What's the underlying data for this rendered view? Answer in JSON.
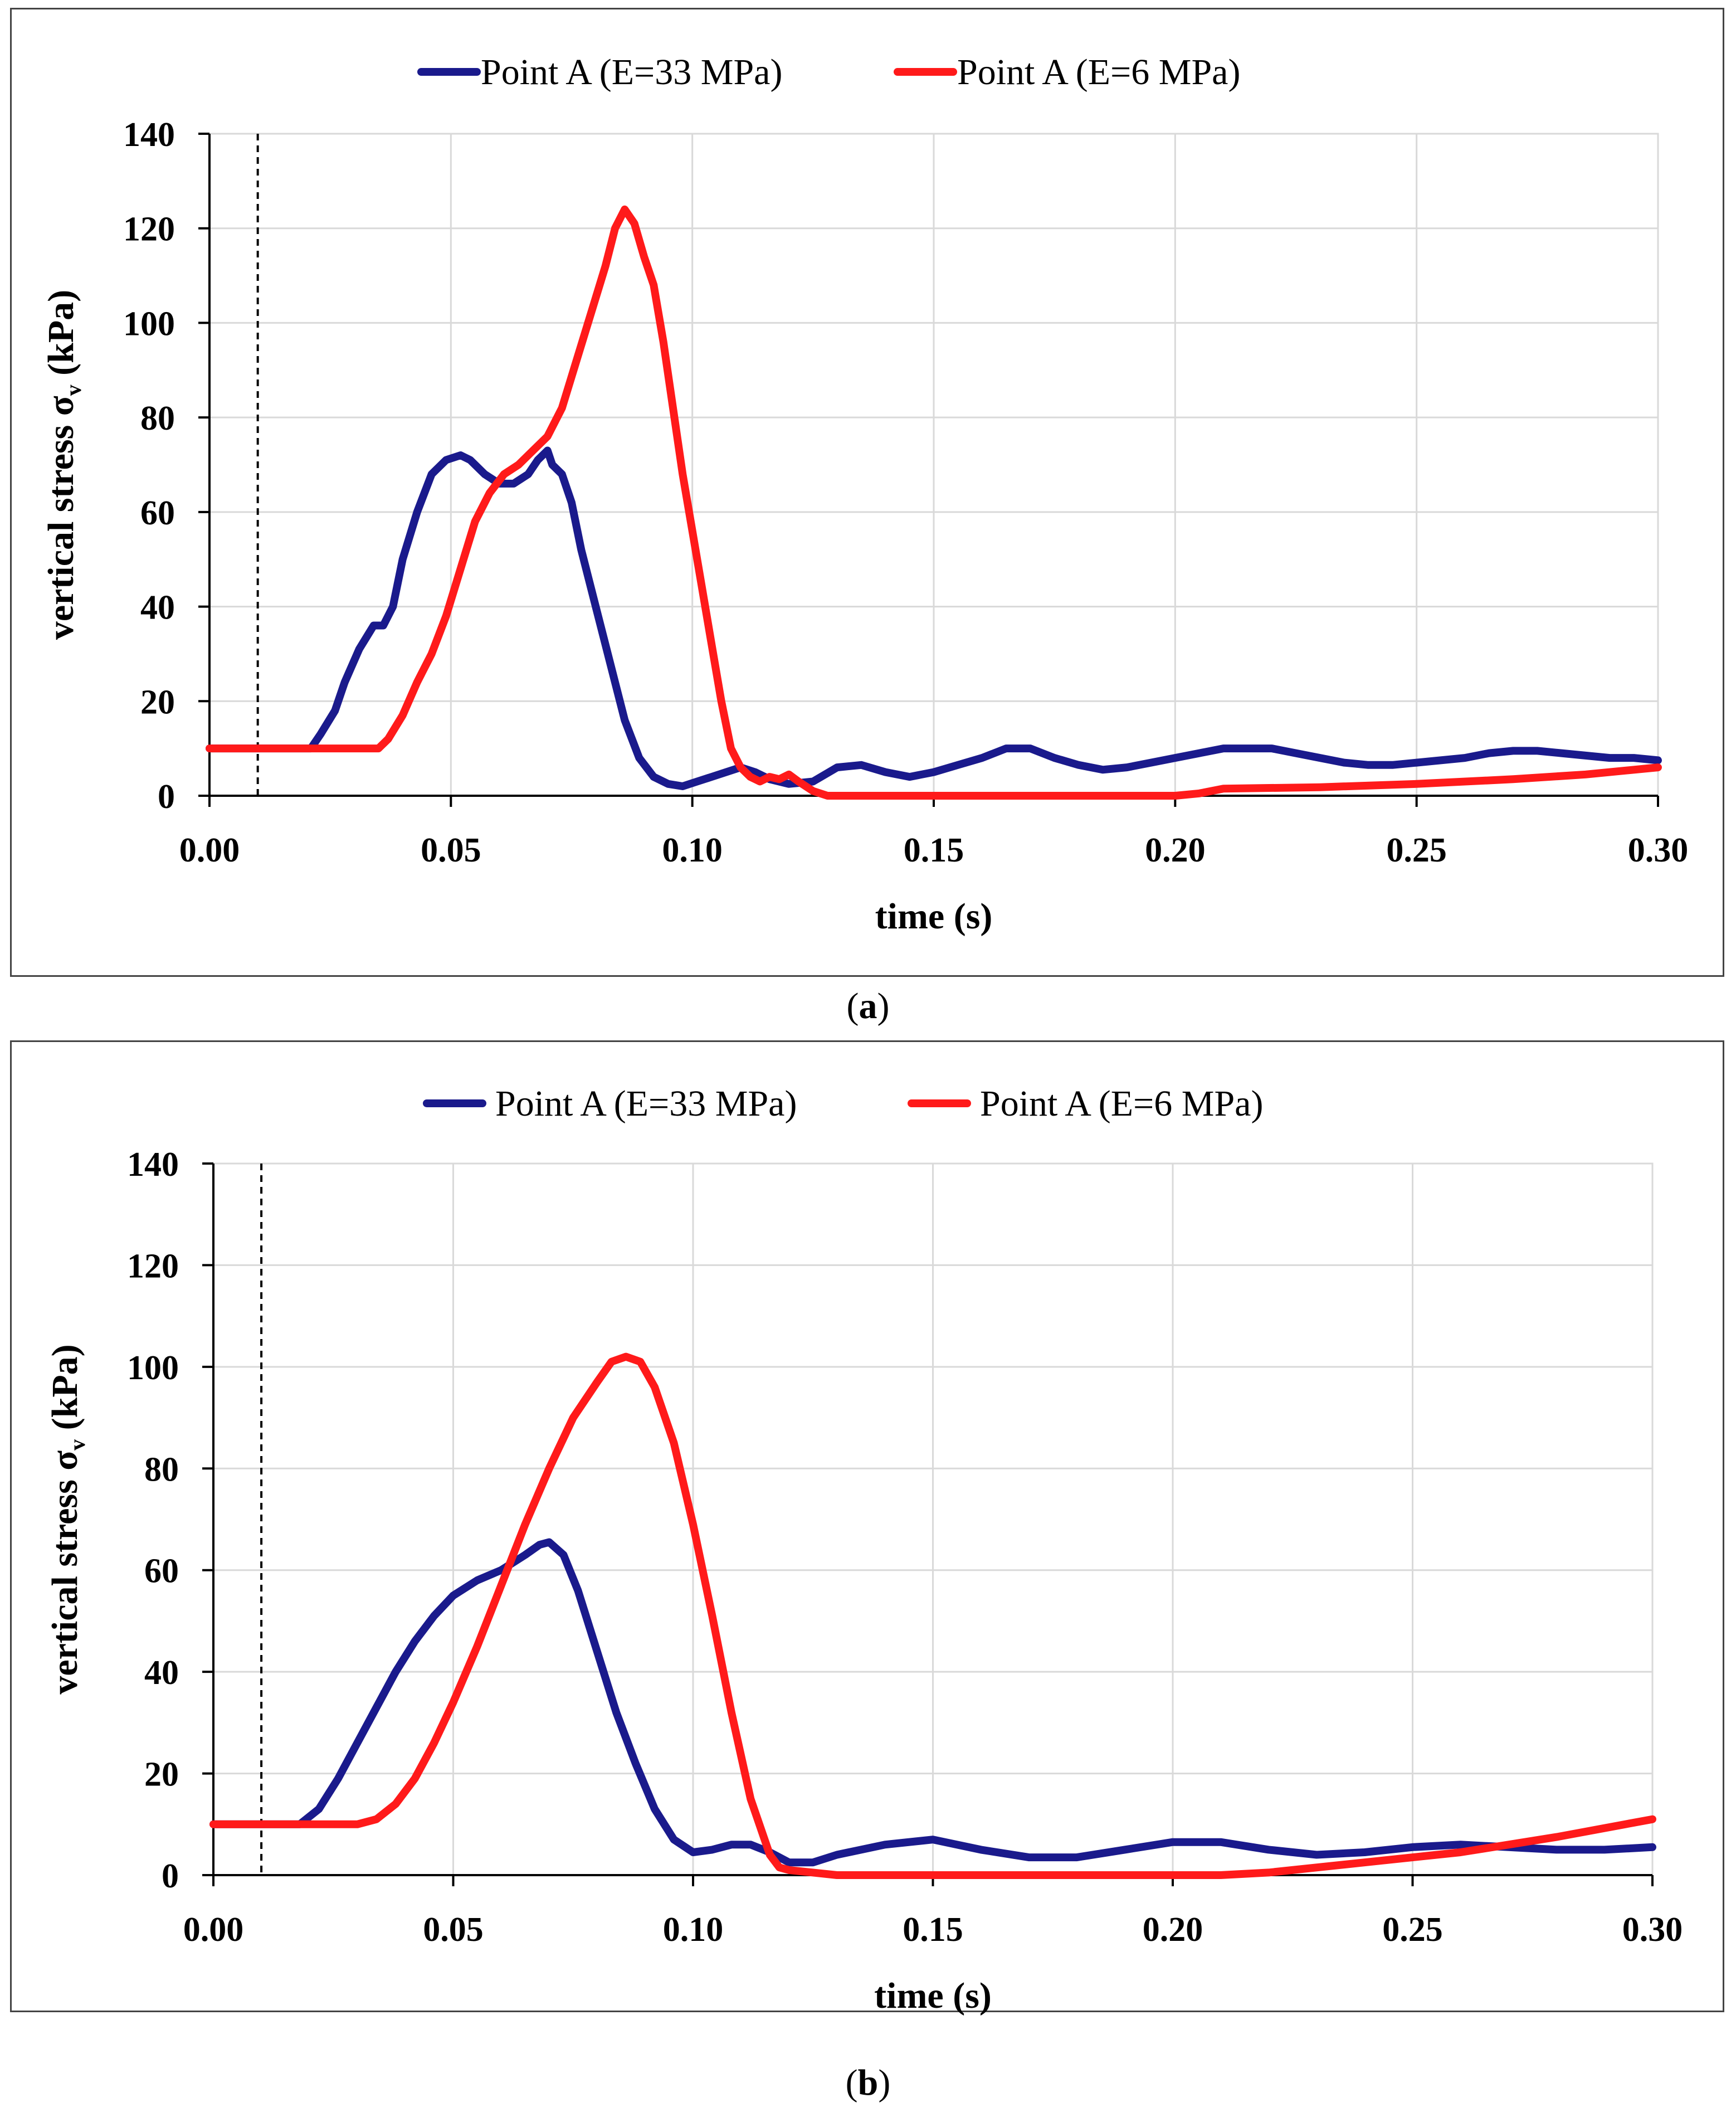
{
  "chart_data": [
    {
      "panel": "a",
      "type": "line",
      "caption_letter": "a",
      "xlabel": "time (s)",
      "ylabel": "vertical stress σ",
      "ylabel_subscript": "v",
      "ylabel_unit": "(kPa)",
      "xlim": [
        0,
        0.3
      ],
      "ylim": [
        0,
        140
      ],
      "xticks": [
        "0.00",
        "0.05",
        "0.10",
        "0.15",
        "0.20",
        "0.25",
        "0.30"
      ],
      "yticks": [
        "0",
        "20",
        "40",
        "60",
        "80",
        "100",
        "120",
        "140"
      ],
      "grid": true,
      "legend_position": "top-center",
      "marker_line_x": 0.01,
      "series": [
        {
          "name": "Point A (E=33 MPa)",
          "color": "#1a1a8c",
          "x": [
            0,
            0.021,
            0.023,
            0.026,
            0.028,
            0.031,
            0.034,
            0.036,
            0.038,
            0.04,
            0.043,
            0.046,
            0.049,
            0.052,
            0.054,
            0.057,
            0.06,
            0.063,
            0.066,
            0.068,
            0.07,
            0.071,
            0.073,
            0.075,
            0.077,
            0.08,
            0.083,
            0.086,
            0.089,
            0.092,
            0.095,
            0.098,
            0.101,
            0.104,
            0.107,
            0.11,
            0.113,
            0.116,
            0.12,
            0.125,
            0.13,
            0.135,
            0.14,
            0.145,
            0.15,
            0.155,
            0.16,
            0.165,
            0.17,
            0.175,
            0.18,
            0.185,
            0.19,
            0.195,
            0.2,
            0.205,
            0.21,
            0.215,
            0.22,
            0.225,
            0.23,
            0.235,
            0.24,
            0.245,
            0.25,
            0.255,
            0.26,
            0.265,
            0.27,
            0.275,
            0.28,
            0.285,
            0.29,
            0.295,
            0.3
          ],
          "y": [
            10,
            10,
            13,
            18,
            24,
            31,
            36,
            36,
            40,
            50,
            60,
            68,
            71,
            72,
            71,
            68,
            66,
            66,
            68,
            71,
            73,
            70,
            68,
            62,
            52,
            40,
            28,
            16,
            8,
            4,
            2.5,
            2,
            3,
            4,
            5,
            6,
            5,
            3.5,
            2.5,
            3,
            6,
            6.5,
            5,
            4,
            5,
            6.5,
            8,
            10,
            10,
            8,
            6.5,
            5.5,
            6,
            7,
            8,
            9,
            10,
            10,
            10,
            9,
            8,
            7,
            6.5,
            6.5,
            7,
            7.5,
            8,
            9,
            9.5,
            9.5,
            9,
            8.5,
            8,
            8,
            7.5
          ]
        },
        {
          "name": "Point A (E=6 MPa)",
          "color": "#ff1a1a",
          "x": [
            0,
            0.035,
            0.037,
            0.04,
            0.043,
            0.046,
            0.049,
            0.052,
            0.055,
            0.058,
            0.061,
            0.064,
            0.067,
            0.07,
            0.073,
            0.076,
            0.079,
            0.082,
            0.084,
            0.086,
            0.088,
            0.09,
            0.092,
            0.094,
            0.096,
            0.098,
            0.1,
            0.102,
            0.104,
            0.106,
            0.108,
            0.11,
            0.112,
            0.114,
            0.116,
            0.118,
            0.12,
            0.122,
            0.125,
            0.128,
            0.135,
            0.15,
            0.17,
            0.19,
            0.2,
            0.205,
            0.21,
            0.23,
            0.25,
            0.27,
            0.285,
            0.3
          ],
          "y": [
            10,
            10,
            12,
            17,
            24,
            30,
            38,
            48,
            58,
            64,
            68,
            70,
            73,
            76,
            82,
            92,
            102,
            112,
            120,
            124,
            121,
            114,
            108,
            96,
            82,
            68,
            56,
            44,
            32,
            20,
            10,
            6,
            4,
            3,
            4,
            3.5,
            4.5,
            3,
            1,
            0,
            0,
            0,
            0,
            0,
            0,
            0.5,
            1.5,
            1.8,
            2.5,
            3.5,
            4.5,
            6
          ]
        }
      ]
    },
    {
      "panel": "b",
      "type": "line",
      "caption_letter": "b",
      "xlabel": "time (s)",
      "ylabel": "vertical stress σ",
      "ylabel_subscript": "v",
      "ylabel_unit": "(kPa)",
      "xlim": [
        0,
        0.3
      ],
      "ylim": [
        0,
        140
      ],
      "xticks": [
        "0.00",
        "0.05",
        "0.10",
        "0.15",
        "0.20",
        "0.25",
        "0.30"
      ],
      "yticks": [
        "0",
        "20",
        "40",
        "60",
        "80",
        "100",
        "120",
        "140"
      ],
      "grid": true,
      "legend_position": "top-center",
      "marker_line_x": 0.01,
      "series": [
        {
          "name": "Point A (E=33 MPa)",
          "color": "#1a1a8c",
          "x": [
            0,
            0.018,
            0.022,
            0.026,
            0.03,
            0.034,
            0.038,
            0.042,
            0.046,
            0.05,
            0.055,
            0.06,
            0.065,
            0.068,
            0.07,
            0.073,
            0.076,
            0.08,
            0.084,
            0.088,
            0.092,
            0.096,
            0.1,
            0.104,
            0.108,
            0.112,
            0.116,
            0.12,
            0.125,
            0.13,
            0.14,
            0.15,
            0.16,
            0.17,
            0.18,
            0.19,
            0.2,
            0.21,
            0.22,
            0.23,
            0.24,
            0.25,
            0.26,
            0.27,
            0.28,
            0.29,
            0.3
          ],
          "y": [
            10,
            10,
            13,
            19,
            26,
            33,
            40,
            46,
            51,
            55,
            58,
            60,
            63,
            65,
            65.5,
            63,
            56,
            44,
            32,
            22,
            13,
            7,
            4.5,
            5,
            6,
            6,
            4.5,
            2.5,
            2.5,
            4,
            6,
            7,
            5,
            3.5,
            3.5,
            5,
            6.5,
            6.5,
            5,
            4,
            4.5,
            5.5,
            6,
            5.5,
            5,
            5,
            5.5
          ]
        },
        {
          "name": "Point A (E=6 MPa)",
          "color": "#ff1a1a",
          "x": [
            0,
            0.03,
            0.034,
            0.038,
            0.042,
            0.046,
            0.05,
            0.055,
            0.06,
            0.065,
            0.07,
            0.075,
            0.08,
            0.083,
            0.086,
            0.089,
            0.092,
            0.096,
            0.1,
            0.104,
            0.108,
            0.112,
            0.116,
            0.118,
            0.12,
            0.125,
            0.13,
            0.14,
            0.16,
            0.18,
            0.2,
            0.21,
            0.22,
            0.24,
            0.26,
            0.28,
            0.3
          ],
          "y": [
            10,
            10,
            11,
            14,
            19,
            26,
            34,
            45,
            57,
            69,
            80,
            90,
            97,
            101,
            102,
            101,
            96,
            85,
            69,
            51,
            32,
            15,
            4,
            1.5,
            1,
            0.5,
            0,
            0,
            0,
            0,
            0,
            0,
            0.5,
            2.5,
            4.5,
            7.5,
            11
          ]
        }
      ]
    }
  ]
}
